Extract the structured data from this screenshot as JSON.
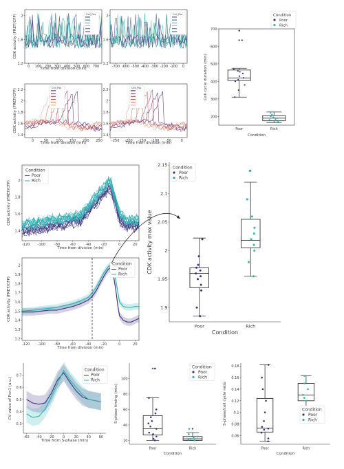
{
  "colors": {
    "poor": "#3b2f7e",
    "rich": "#2ab3b0",
    "axis": "#333333"
  },
  "chart_data": [
    {
      "id": "tl",
      "type": "line",
      "xlabel": "Time from division (min)",
      "ylabel": "CDK activity (FRET/CFP)",
      "xticks": [
        0,
        100,
        200,
        300,
        400,
        500,
        600,
        700
      ],
      "yticks": [
        1.2,
        1.6,
        2.0
      ],
      "xlim": [
        -40,
        760
      ],
      "ylim": [
        1.2,
        2.1
      ],
      "legend": {
        "title": "Cell_Pos",
        "entries": [
          "",
          "",
          "",
          "",
          "",
          ""
        ]
      },
      "series_palette": [
        "#22315e",
        "#2b5d8c",
        "#2ab3b0",
        "#5fd3a6",
        "#1c7f8f",
        "#5a3f90"
      ]
    },
    {
      "id": "tr",
      "type": "line",
      "xlabel": "",
      "ylabel": "",
      "xticks": [
        -700,
        -600,
        -500,
        -400,
        -300,
        -200,
        -100,
        0
      ],
      "yticks": [
        1.2,
        1.6,
        2.0
      ],
      "xlim": [
        -760,
        40
      ],
      "ylim": [
        1.2,
        2.1
      ],
      "legend": {
        "title": "Cell_Pos",
        "entries": [
          "",
          "",
          "",
          "",
          "",
          ""
        ]
      },
      "series_palette": [
        "#22315e",
        "#2b5d8c",
        "#2ab3b0",
        "#5fd3a6",
        "#1c7f8f",
        "#5a3f90"
      ]
    },
    {
      "id": "ml",
      "type": "line",
      "xlabel": "Time from division (min)",
      "ylabel": "CDK activity (FRET/CFP)",
      "xticks": [
        0,
        50,
        100,
        150,
        200,
        250
      ],
      "yticks": [
        1.4,
        1.6,
        1.8,
        2.0,
        2.2
      ],
      "xlim": [
        -30,
        260
      ],
      "ylim": [
        1.35,
        2.3
      ],
      "legend": {
        "title": "Cell_Pos",
        "entries": [
          "",
          "",
          "",
          "",
          "",
          ""
        ]
      },
      "series_palette": [
        "#3b1a5a",
        "#6b1f6a",
        "#a0304f",
        "#c8504a",
        "#d9705a",
        "#e8a08a"
      ]
    },
    {
      "id": "mr",
      "type": "line",
      "xlabel": "Time from division (min)",
      "ylabel": "",
      "xticks": [
        -250,
        -200,
        -150,
        -100,
        -50,
        0
      ],
      "yticks": [
        1.4,
        1.6,
        1.8,
        2.0,
        2.2
      ],
      "xlim": [
        -270,
        20
      ],
      "ylim": [
        1.35,
        2.3
      ],
      "legend": {
        "title": "Cell_Pos",
        "entries": [
          "",
          "",
          "",
          "",
          "",
          ""
        ]
      },
      "series_palette": [
        "#3b1a5a",
        "#6b1f6a",
        "#a0304f",
        "#c8504a",
        "#d9705a",
        "#e8a08a"
      ]
    },
    {
      "id": "box1",
      "type": "box",
      "xlabel": "Condition",
      "ylabel": "Cell cycle duration (min)",
      "categories": [
        "Poor",
        "Rich"
      ],
      "ylim": [
        150,
        700
      ],
      "yticks": [
        200,
        300,
        400,
        500,
        600,
        700
      ],
      "legend": {
        "title": "Condition",
        "entries": [
          "Poor",
          "Rich"
        ]
      },
      "boxes": [
        {
          "q1": 405,
          "median": 420,
          "q3": 465,
          "wlo": 310,
          "whi": 475,
          "outliers": [
            635,
            690
          ]
        },
        {
          "q1": 175,
          "median": 190,
          "q3": 205,
          "wlo": 165,
          "whi": 225,
          "outliers": []
        }
      ],
      "points": [
        [
          410,
          420,
          430,
          445,
          455,
          460,
          470,
          400,
          380,
          350,
          310,
          635,
          690
        ],
        [
          170,
          180,
          185,
          190,
          195,
          200,
          210,
          220,
          165
        ]
      ]
    },
    {
      "id": "traces",
      "type": "line",
      "xlabel": "Time from division (min)",
      "ylabel": "CDK activity (FRET/CFP)",
      "xticks": [
        -120,
        -100,
        -80,
        -60,
        -40,
        -20,
        0,
        20
      ],
      "yticks": [
        1.4,
        1.6,
        1.8,
        2.0
      ],
      "xlim": [
        -125,
        25
      ],
      "ylim": [
        1.28,
        2.18
      ],
      "legend": {
        "title": "Condition",
        "entries": [
          "Poor",
          "Rich"
        ]
      }
    },
    {
      "id": "mean",
      "type": "line",
      "xlabel": "Time from division (min)",
      "ylabel": "CDK activity (FRET/CFP)",
      "xticks": [
        -120,
        -100,
        -80,
        -60,
        -40,
        -20,
        0,
        20
      ],
      "yticks": [
        1.2,
        1.3,
        1.4,
        1.5,
        1.6,
        1.7,
        1.8,
        1.9,
        2.0
      ],
      "xlim": [
        -125,
        25
      ],
      "ylim": [
        1.18,
        2.08
      ],
      "vline_x": -35,
      "legend": {
        "title": "Condition",
        "entries": [
          "Poor",
          "Rich"
        ]
      },
      "series": [
        {
          "name": "Poor",
          "x": [
            -125,
            -110,
            -100,
            -90,
            -80,
            -70,
            -60,
            -50,
            -40,
            -35,
            -30,
            -25,
            -20,
            -15,
            -12,
            -10,
            -8,
            -5,
            -2,
            0,
            5,
            10,
            15,
            20,
            25
          ],
          "y": [
            1.49,
            1.49,
            1.5,
            1.51,
            1.51,
            1.53,
            1.55,
            1.58,
            1.62,
            1.66,
            1.72,
            1.8,
            1.88,
            1.95,
            1.97,
            1.96,
            1.9,
            1.75,
            1.55,
            1.45,
            1.4,
            1.38,
            1.38,
            1.4,
            1.42
          ]
        },
        {
          "name": "Rich",
          "x": [
            -125,
            -110,
            -100,
            -90,
            -80,
            -70,
            -60,
            -50,
            -40,
            -35,
            -30,
            -25,
            -20,
            -15,
            -12,
            -10,
            -8,
            -5,
            -2,
            0,
            5,
            10,
            15,
            20,
            25
          ],
          "y": [
            1.5,
            1.51,
            1.52,
            1.53,
            1.54,
            1.56,
            1.58,
            1.61,
            1.65,
            1.7,
            1.76,
            1.84,
            1.92,
            1.98,
            2.0,
            1.99,
            1.95,
            1.85,
            1.7,
            1.6,
            1.55,
            1.54,
            1.54,
            1.55,
            1.55
          ]
        }
      ]
    },
    {
      "id": "box2",
      "type": "box",
      "xlabel": "Condition",
      "ylabel": "CDK activity max value",
      "categories": [
        "Poor",
        "Rich"
      ],
      "ylim": [
        1.875,
        2.155
      ],
      "yticks": [
        1.9,
        1.95,
        2.0,
        2.05,
        2.1,
        2.15
      ],
      "legend": {
        "title": "Condition",
        "entries": [
          "Poor",
          "Rich"
        ]
      },
      "boxes": [
        {
          "q1": 1.935,
          "median": 1.96,
          "q3": 1.97,
          "wlo": 1.885,
          "whi": 2.022,
          "outliers": []
        },
        {
          "q1": 2.005,
          "median": 2.018,
          "q3": 2.055,
          "wlo": 1.955,
          "whi": 2.12,
          "outliers": [
            2.14
          ]
        }
      ],
      "points": [
        [
          1.885,
          1.9,
          1.93,
          1.94,
          1.95,
          1.955,
          1.96,
          1.965,
          1.97,
          1.975,
          1.99,
          2.02
        ],
        [
          1.955,
          1.98,
          2.0,
          2.01,
          2.02,
          2.03,
          2.04,
          2.06,
          2.09,
          2.14
        ]
      ]
    },
    {
      "id": "cv",
      "type": "line",
      "xlabel": "Time from S-phase (min)",
      "ylabel": "CV value of Pcn1 (a.u.)",
      "xticks": [
        -60,
        -40,
        -20,
        0,
        20,
        40,
        60
      ],
      "yticks": [
        0.3,
        0.4,
        0.5,
        0.6,
        0.7
      ],
      "xlim": [
        -65,
        68
      ],
      "ylim": [
        0.22,
        0.8
      ],
      "legend": {
        "title": "Condition",
        "entries": [
          "Poor",
          "Rich"
        ]
      },
      "series": [
        {
          "name": "Poor",
          "x": [
            -60,
            -50,
            -40,
            -30,
            -20,
            -10,
            0,
            10,
            20,
            30,
            40,
            50,
            60
          ],
          "y": [
            0.5,
            0.47,
            0.46,
            0.47,
            0.55,
            0.66,
            0.72,
            0.64,
            0.57,
            0.52,
            0.5,
            0.49,
            0.48
          ]
        },
        {
          "name": "Rich",
          "x": [
            -60,
            -50,
            -40,
            -30,
            -20,
            -10,
            0,
            10,
            20,
            30,
            40,
            50,
            60
          ],
          "y": [
            0.38,
            0.35,
            0.36,
            0.42,
            0.52,
            0.63,
            0.74,
            0.66,
            0.6,
            0.54,
            0.5,
            0.49,
            0.48
          ]
        }
      ]
    },
    {
      "id": "box3",
      "type": "box",
      "xlabel": "Condition",
      "ylabel": "S-phase timing (min)",
      "categories": [
        "Poor",
        "Rich"
      ],
      "ylim": [
        15,
        120
      ],
      "yticks": [
        20,
        40,
        60,
        80,
        100
      ],
      "legend": {
        "title": "Condition",
        "entries": [
          "Poor",
          "Rich"
        ]
      },
      "boxes": [
        {
          "q1": 27,
          "median": 35,
          "q3": 52,
          "wlo": 20,
          "whi": 75,
          "outliers": [
            113
          ]
        },
        {
          "q1": 20,
          "median": 22,
          "q3": 25,
          "wlo": 20,
          "whi": 30,
          "outliers": [
            35
          ]
        }
      ],
      "points": [
        [
          20,
          22,
          25,
          28,
          30,
          35,
          38,
          42,
          45,
          50,
          55,
          60,
          75,
          113
        ],
        [
          20,
          21,
          22,
          22,
          24,
          25,
          28,
          35
        ]
      ]
    },
    {
      "id": "box4",
      "type": "box",
      "xlabel": "Condition",
      "ylabel": "S-phase/cell cycle ratio",
      "categories": [
        "Poor",
        "Rich"
      ],
      "ylim": [
        0.045,
        0.185
      ],
      "yticks": [
        0.06,
        0.08,
        0.1,
        0.12,
        0.14,
        0.16,
        0.18
      ],
      "legend": {
        "title": "Condition",
        "entries": [
          "Poor",
          "Rich"
        ]
      },
      "boxes": [
        {
          "q1": 0.066,
          "median": 0.073,
          "q3": 0.124,
          "wlo": 0.05,
          "whi": 0.182,
          "outliers": []
        },
        {
          "q1": 0.12,
          "median": 0.13,
          "q3": 0.15,
          "wlo": 0.093,
          "whi": 0.163,
          "outliers": []
        }
      ],
      "points": [
        [
          0.05,
          0.055,
          0.065,
          0.07,
          0.072,
          0.075,
          0.085,
          0.1,
          0.12,
          0.14,
          0.16,
          0.182
        ],
        [
          0.093,
          0.11,
          0.12,
          0.125,
          0.13,
          0.14,
          0.15,
          0.163
        ]
      ]
    }
  ]
}
